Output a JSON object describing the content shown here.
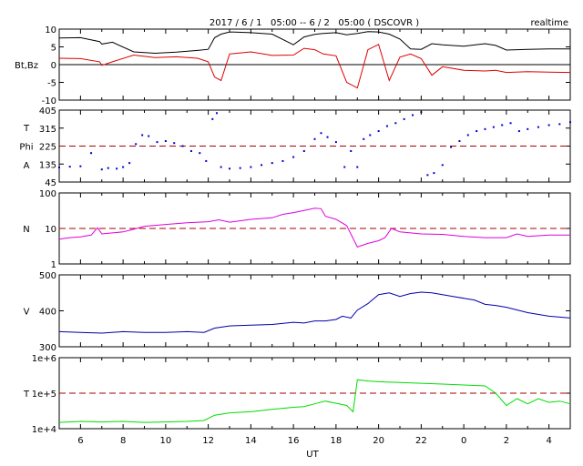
{
  "header": {
    "title": "2017 / 6 / 1   05:00 -- 6 / 2   05:00 ( DSCOVR )",
    "mode": "realtime"
  },
  "x_axis": {
    "label": "UT",
    "ticks": [
      "6",
      "8",
      "10",
      "12",
      "14",
      "16",
      "18",
      "20",
      "22",
      "0",
      "2",
      "4"
    ],
    "start_hour": 5,
    "end_hour": 29
  },
  "chart_data": [
    {
      "type": "line",
      "panel": "Bt,Bz",
      "ylabel": "Bt,Bz",
      "ylim": [
        -10,
        10
      ],
      "yticks": [
        "10",
        "5",
        "0",
        "-5",
        "-10"
      ],
      "reference_line": {
        "value": 0,
        "style": "solid",
        "color": "#000000"
      },
      "x": [
        5.0,
        6.0,
        6.9,
        7.0,
        7.5,
        8.5,
        9.5,
        10.5,
        11.5,
        12.0,
        12.3,
        12.6,
        13.0,
        14.0,
        15.0,
        16.0,
        16.5,
        17.0,
        17.4,
        18.0,
        18.5,
        19.0,
        19.5,
        20.0,
        20.5,
        21.0,
        21.5,
        22.0,
        22.5,
        23.0,
        24.0,
        25.0,
        25.5,
        26.0,
        27.0,
        28.0,
        29.0
      ],
      "series": [
        {
          "name": "Bt",
          "color": "#000000",
          "values": [
            7.5,
            7.6,
            6.5,
            5.8,
            6.3,
            3.6,
            3.2,
            3.5,
            4.0,
            4.3,
            7.6,
            8.6,
            9.2,
            9.0,
            8.6,
            5.6,
            7.8,
            8.5,
            8.8,
            9.0,
            8.4,
            8.8,
            9.3,
            9.2,
            8.6,
            7.2,
            4.4,
            4.3,
            5.9,
            5.6,
            5.2,
            5.9,
            5.4,
            4.1,
            4.3,
            4.4,
            4.4
          ]
        },
        {
          "name": "Bz",
          "color": "#dd0000",
          "values": [
            1.8,
            1.7,
            0.8,
            -0.2,
            0.8,
            2.7,
            2.0,
            2.2,
            1.8,
            0.8,
            -3.5,
            -4.5,
            3.0,
            3.6,
            2.6,
            2.7,
            4.6,
            4.2,
            3.0,
            2.5,
            -5.0,
            -6.6,
            4.2,
            5.7,
            -4.5,
            2.1,
            3.0,
            1.7,
            -3.0,
            -0.6,
            -1.6,
            -1.8,
            -1.6,
            -2.2,
            -2.0,
            -2.1,
            -2.2
          ]
        }
      ]
    },
    {
      "type": "scatter",
      "panel": "Phi",
      "ylabel": [
        "T",
        "Phi",
        "A"
      ],
      "ylim": [
        45,
        405
      ],
      "yticks": [
        "405",
        "315",
        "225",
        "135",
        "45"
      ],
      "reference_line": {
        "value": 225,
        "style": "dashed",
        "color": "#aa0000"
      },
      "series": [
        {
          "name": "Phi",
          "color": "#0000cc",
          "x": [
            5.0,
            5.5,
            6.0,
            6.5,
            7.0,
            7.3,
            7.7,
            8.0,
            8.3,
            8.6,
            8.9,
            9.2,
            9.6,
            10.0,
            10.4,
            10.8,
            11.2,
            11.6,
            11.9,
            12.2,
            12.4,
            12.6,
            13.0,
            13.5,
            14.0,
            14.5,
            15.0,
            15.5,
            16.0,
            16.5,
            17.0,
            17.3,
            17.6,
            18.0,
            18.4,
            18.7,
            19.0,
            19.3,
            19.6,
            20.0,
            20.4,
            20.8,
            21.2,
            21.6,
            22.0,
            22.3,
            22.6,
            23.0,
            23.4,
            23.8,
            24.2,
            24.6,
            25.0,
            25.4,
            25.8,
            26.2,
            26.6,
            27.0,
            27.5,
            28.0,
            28.5,
            29.0
          ],
          "values": [
            118,
            122,
            124,
            190,
            108,
            115,
            112,
            120,
            140,
            235,
            280,
            275,
            245,
            250,
            240,
            225,
            200,
            190,
            150,
            360,
            390,
            120,
            112,
            115,
            120,
            130,
            140,
            150,
            170,
            200,
            260,
            290,
            270,
            245,
            120,
            200,
            120,
            260,
            280,
            300,
            325,
            340,
            360,
            380,
            395,
            80,
            90,
            130,
            220,
            250,
            280,
            300,
            310,
            320,
            330,
            340,
            300,
            310,
            320,
            330,
            335,
            345
          ]
        }
      ]
    },
    {
      "type": "line",
      "panel": "N",
      "ylabel": "N",
      "yscale": "log",
      "ylim": [
        1,
        100
      ],
      "yticks": [
        "100",
        "10",
        "1"
      ],
      "reference_line": {
        "value": 10,
        "style": "dashed",
        "color": "#aa0000"
      },
      "x": [
        5.0,
        5.5,
        6.0,
        6.5,
        6.8,
        7.0,
        7.5,
        8.0,
        8.5,
        9.0,
        10.0,
        11.0,
        12.0,
        12.5,
        13.0,
        14.0,
        15.0,
        15.5,
        16.0,
        16.5,
        17.0,
        17.3,
        17.5,
        18.0,
        18.5,
        19.0,
        19.5,
        20.0,
        20.3,
        20.6,
        21.0,
        22.0,
        23.0,
        24.0,
        25.0,
        26.0,
        26.5,
        27.0,
        28.0,
        29.0
      ],
      "series": [
        {
          "name": "N",
          "color": "#dd00dd",
          "values": [
            5.0,
            5.5,
            5.8,
            6.5,
            10.5,
            7.0,
            7.5,
            8.0,
            9.5,
            11.5,
            13.0,
            14.5,
            15.5,
            17.5,
            15.0,
            18.0,
            20.0,
            25.0,
            28.0,
            32.0,
            37.0,
            36.0,
            22.0,
            18.0,
            12.0,
            3.0,
            3.8,
            4.5,
            5.5,
            10.0,
            8.0,
            7.0,
            6.8,
            6.0,
            5.5,
            5.5,
            7.0,
            6.0,
            6.5,
            6.5
          ]
        }
      ]
    },
    {
      "type": "line",
      "panel": "V",
      "ylabel": "V",
      "ylim": [
        300,
        500
      ],
      "yticks": [
        "500",
        "400",
        "300"
      ],
      "x": [
        5.0,
        6.0,
        7.0,
        8.0,
        9.0,
        10.0,
        11.0,
        11.8,
        12.3,
        13.0,
        14.0,
        15.0,
        16.0,
        16.5,
        17.0,
        17.5,
        18.0,
        18.3,
        18.7,
        19.0,
        19.5,
        20.0,
        20.5,
        21.0,
        21.5,
        22.0,
        22.5,
        23.0,
        23.5,
        24.0,
        24.5,
        25.0,
        25.5,
        26.0,
        27.0,
        28.0,
        29.0
      ],
      "series": [
        {
          "name": "V",
          "color": "#0000aa",
          "values": [
            342,
            340,
            338,
            342,
            340,
            340,
            342,
            340,
            352,
            358,
            360,
            362,
            368,
            366,
            372,
            372,
            376,
            385,
            380,
            402,
            420,
            445,
            450,
            440,
            448,
            452,
            450,
            445,
            440,
            435,
            430,
            418,
            415,
            410,
            395,
            385,
            380
          ]
        }
      ]
    },
    {
      "type": "line",
      "panel": "T",
      "ylabel": "T",
      "yscale": "log",
      "ylim": [
        10000,
        1000000
      ],
      "yticks": [
        "1e+6",
        "1e+5",
        "1e+4"
      ],
      "reference_line": {
        "value": 100000,
        "style": "dashed",
        "color": "#aa0000"
      },
      "x": [
        5.0,
        6.0,
        7.0,
        8.0,
        9.0,
        10.0,
        11.0,
        11.8,
        12.3,
        13.0,
        14.0,
        15.0,
        16.0,
        16.5,
        17.0,
        17.5,
        18.0,
        18.5,
        18.8,
        19.0,
        19.5,
        20.0,
        21.0,
        22.0,
        23.0,
        24.0,
        25.0,
        25.5,
        26.0,
        26.5,
        27.0,
        27.5,
        28.0,
        28.5,
        29.0
      ],
      "series": [
        {
          "name": "T",
          "color": "#00dd00",
          "values": [
            15000,
            16000,
            15500,
            16000,
            15000,
            15500,
            16000,
            17000,
            24000,
            28000,
            30000,
            35000,
            40000,
            42000,
            50000,
            60000,
            52000,
            45000,
            30000,
            240000,
            220000,
            210000,
            200000,
            190000,
            180000,
            170000,
            160000,
            100000,
            45000,
            70000,
            50000,
            70000,
            55000,
            60000,
            50000
          ]
        }
      ]
    }
  ]
}
